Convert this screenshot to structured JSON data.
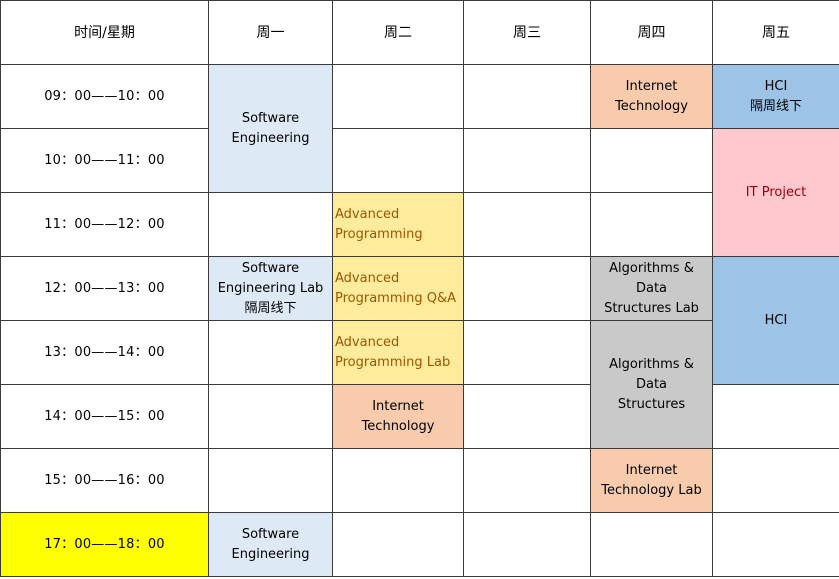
{
  "header": {
    "time_label": "时间/星期",
    "mon": "周一",
    "tue": "周二",
    "wed": "周三",
    "thu": "周四",
    "fri": "周五"
  },
  "times": [
    "09：00——10：00",
    "10：00——11：00",
    "11：00——12：00",
    "12：00——13：00",
    "13：00——14：00",
    "14：00——15：00",
    "15：00——16：00",
    "17：00——18：00"
  ],
  "courses": {
    "mon_se": "Software\nEngineering",
    "mon_se_lab": "Software\nEngineering Lab\n隔周线下",
    "mon_se_evening": "Software\nEngineering",
    "tue_ap": "Advanced\nProgramming",
    "tue_ap_qa": "Advanced\nProgramming Q&A",
    "tue_ap_lab": "Advanced\nProgramming Lab",
    "tue_it": "Internet Technology",
    "thu_it": "Internet\nTechnology",
    "thu_ads_lab": "Algorithms & Data\nStructures Lab",
    "thu_ads": "Algorithms & Data\nStructures",
    "thu_it_lab": "Internet\nTechnology Lab",
    "fri_hci_offline": "HCI\n隔周线下",
    "fri_it_project": "IT Project",
    "fri_hci": "HCI"
  },
  "colors": {
    "software_engineering": "#dde9f5",
    "internet_technology": "#f8cbad",
    "hci": "#9dc3e6",
    "it_project": "#ffc7ce",
    "advanced_programming": "#ffeb9c",
    "algorithms": "#c9c9c9",
    "evening_time_highlight": "#ffff00"
  }
}
